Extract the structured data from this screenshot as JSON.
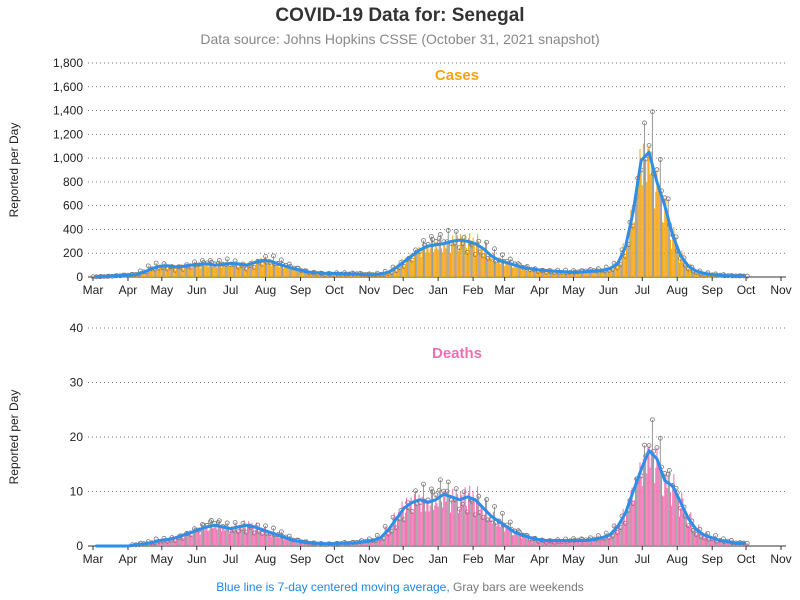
{
  "title": "COVID-19 Data for: Senegal",
  "subtitle": "Data source: Johns Hopkins CSSE (October 31, 2021 snapshot)",
  "footer": {
    "blue_text": "Blue line is 7-day centered moving average,",
    "gray_text": "Gray bars are weekends"
  },
  "colors": {
    "cases_bar": "#f5a40c",
    "deaths_bar": "#f06fb2",
    "weekend_bar": "#9a9a9a",
    "moving_avg": "#2f8ee8",
    "grid": "#7a7a7a"
  },
  "chart_data": [
    {
      "type": "bar",
      "name": "cases",
      "title": "Cases",
      "ylabel": "Reported per Day",
      "ylim": [
        0,
        1800
      ],
      "yticks": [
        0,
        200,
        400,
        600,
        800,
        1000,
        1200,
        1400,
        1600,
        1800
      ],
      "ytick_labels": [
        "0",
        "200",
        "400",
        "600",
        "800",
        "1,000",
        "1,200",
        "1,400",
        "1,600",
        "1,800"
      ],
      "x_range": [
        "2020-03-01",
        "2021-11-01"
      ],
      "xticks": [
        "Mar",
        "Apr",
        "May",
        "Jun",
        "Jul",
        "Aug",
        "Sep",
        "Oct",
        "Nov",
        "Dec",
        "Jan",
        "Feb",
        "Mar",
        "Apr",
        "May",
        "Jun",
        "Jul",
        "Aug",
        "Sep",
        "Oct",
        "Nov"
      ],
      "grid": "horizontal dotted",
      "series": [
        {
          "name": "daily",
          "values_weekly": [
            2,
            5,
            8,
            12,
            15,
            20,
            40,
            70,
            90,
            95,
            85,
            90,
            100,
            105,
            110,
            100,
            105,
            115,
            110,
            100,
            120,
            140,
            135,
            110,
            90,
            70,
            55,
            40,
            35,
            30,
            30,
            28,
            25,
            25,
            20,
            20,
            25,
            40,
            80,
            130,
            180,
            230,
            260,
            270,
            280,
            300,
            310,
            300,
            280,
            240,
            180,
            140,
            120,
            100,
            80,
            70,
            60,
            55,
            50,
            45,
            40,
            40,
            45,
            50,
            55,
            70,
            110,
            250,
            550,
            980,
            1050,
            800,
            600,
            350,
            180,
            90,
            50,
            30,
            20,
            15,
            10,
            8,
            8
          ]
        },
        {
          "name": "7-day moving average",
          "values_weekly": [
            2,
            5,
            8,
            12,
            15,
            20,
            40,
            70,
            90,
            95,
            85,
            90,
            100,
            105,
            110,
            100,
            105,
            115,
            110,
            100,
            120,
            140,
            135,
            110,
            90,
            70,
            55,
            40,
            35,
            30,
            30,
            28,
            25,
            25,
            20,
            20,
            25,
            40,
            80,
            130,
            180,
            230,
            260,
            270,
            280,
            300,
            310,
            300,
            280,
            240,
            180,
            140,
            120,
            100,
            80,
            70,
            60,
            55,
            50,
            45,
            40,
            40,
            45,
            50,
            55,
            70,
            110,
            250,
            550,
            980,
            1050,
            800,
            600,
            350,
            180,
            90,
            50,
            30,
            20,
            15,
            10,
            8,
            8
          ]
        }
      ]
    },
    {
      "type": "bar",
      "name": "deaths",
      "title": "Deaths",
      "ylabel": "Reported per Day",
      "ylim": [
        0,
        40
      ],
      "yticks": [
        0,
        10,
        20,
        30,
        40
      ],
      "ytick_labels": [
        "0",
        "10",
        "20",
        "30",
        "40"
      ],
      "x_range": [
        "2020-03-01",
        "2021-11-01"
      ],
      "xticks": [
        "Mar",
        "Apr",
        "May",
        "Jun",
        "Jul",
        "Aug",
        "Sep",
        "Oct",
        "Nov",
        "Dec",
        "Jan",
        "Feb",
        "Mar",
        "Apr",
        "May",
        "Jun",
        "Jul",
        "Aug",
        "Sep",
        "Oct",
        "Nov"
      ],
      "grid": "horizontal dotted",
      "series": [
        {
          "name": "daily",
          "values_weekly": [
            0,
            0,
            0,
            0,
            0,
            0.2,
            0.4,
            0.6,
            1,
            1.2,
            1.5,
            2,
            2.5,
            3,
            3.5,
            3.8,
            3.5,
            3.2,
            3.5,
            3.8,
            3.5,
            3,
            2.5,
            2,
            1.5,
            1,
            0.8,
            0.6,
            0.5,
            0.4,
            0.4,
            0.5,
            0.5,
            0.6,
            0.8,
            1,
            1.5,
            3,
            5,
            7,
            8,
            8.5,
            8,
            8.5,
            9.5,
            9,
            8.5,
            9,
            8.5,
            7,
            5.5,
            4.5,
            3.5,
            2.5,
            2,
            1.5,
            1.2,
            1,
            1,
            1,
            1,
            1,
            1,
            1.2,
            1.5,
            2,
            3.5,
            6,
            10,
            14,
            17.5,
            16,
            12,
            11,
            8,
            5,
            3,
            2,
            1.5,
            1,
            0.8,
            0.5,
            0.5
          ]
        },
        {
          "name": "7-day moving average",
          "values_weekly": [
            0,
            0,
            0,
            0,
            0,
            0.2,
            0.4,
            0.6,
            1,
            1.2,
            1.5,
            2,
            2.5,
            3,
            3.5,
            3.8,
            3.5,
            3.2,
            3.5,
            3.8,
            3.5,
            3,
            2.5,
            2,
            1.5,
            1,
            0.8,
            0.6,
            0.5,
            0.4,
            0.4,
            0.5,
            0.5,
            0.6,
            0.8,
            1,
            1.5,
            3,
            5,
            7,
            8,
            8.5,
            8,
            8.5,
            9.5,
            9,
            8.5,
            9,
            8.5,
            7,
            5.5,
            4.5,
            3.5,
            2.5,
            2,
            1.5,
            1.2,
            1,
            1,
            1,
            1,
            1,
            1,
            1.2,
            1.5,
            2,
            3.5,
            6,
            10,
            14,
            17.5,
            16,
            12,
            11,
            8,
            5,
            3,
            2,
            1.5,
            1,
            0.8,
            0.5,
            0.5
          ]
        }
      ]
    }
  ]
}
